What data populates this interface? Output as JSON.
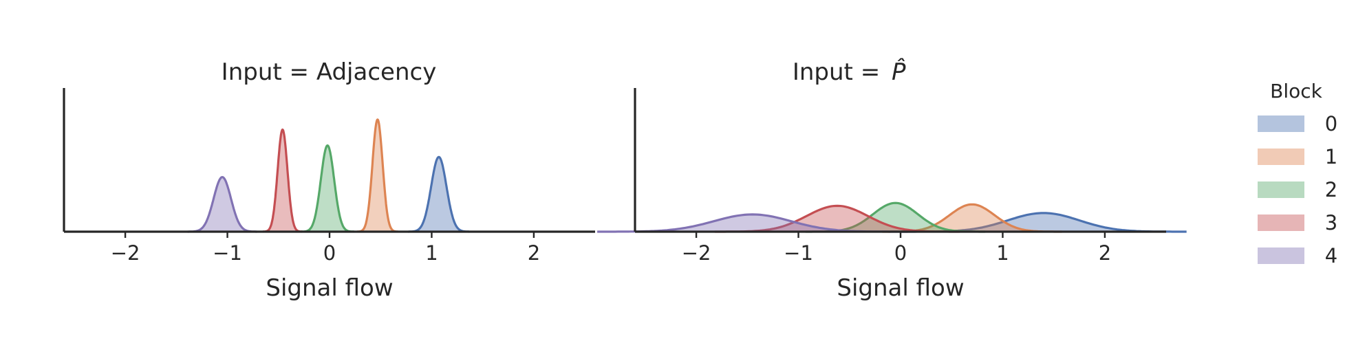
{
  "chart_data": [
    {
      "type": "area",
      "title": "Input = Adjacency",
      "xlabel": "Signal flow",
      "ylabel": "",
      "xlim": [
        -2.6,
        2.6
      ],
      "xticks": [
        -2,
        -1,
        0,
        1,
        2
      ],
      "tick_labels": [
        "−2",
        "−1",
        "0",
        "1",
        "2"
      ],
      "yaxis_ticks": "none",
      "series": [
        {
          "name": "0",
          "mean": 1.07,
          "sd": 0.075,
          "peak": 0.52
        },
        {
          "name": "1",
          "mean": 0.47,
          "sd": 0.05,
          "peak": 0.78
        },
        {
          "name": "2",
          "mean": -0.02,
          "sd": 0.065,
          "peak": 0.6
        },
        {
          "name": "3",
          "mean": -0.46,
          "sd": 0.048,
          "peak": 0.71
        },
        {
          "name": "4",
          "mean": -1.05,
          "sd": 0.085,
          "peak": 0.38
        }
      ]
    },
    {
      "type": "area",
      "title": "Input = ",
      "title_math": "P̂",
      "xlabel": "Signal flow",
      "ylabel": "",
      "xlim": [
        -2.6,
        2.6
      ],
      "xticks": [
        -2,
        -1,
        0,
        1,
        2
      ],
      "tick_labels": [
        "−2",
        "−1",
        "0",
        "1",
        "2"
      ],
      "yaxis_ticks": "none",
      "series": [
        {
          "name": "0",
          "mean": 1.4,
          "sd": 0.35,
          "peak": 0.13
        },
        {
          "name": "1",
          "mean": 0.7,
          "sd": 0.22,
          "peak": 0.19
        },
        {
          "name": "2",
          "mean": -0.05,
          "sd": 0.22,
          "peak": 0.2
        },
        {
          "name": "3",
          "mean": -0.62,
          "sd": 0.3,
          "peak": 0.18
        },
        {
          "name": "4",
          "mean": -1.45,
          "sd": 0.38,
          "peak": 0.12
        }
      ]
    }
  ],
  "legend": {
    "title": "Block",
    "placement": "right",
    "items": [
      {
        "label": "0",
        "color": "#4c72b0"
      },
      {
        "label": "1",
        "color": "#dd8452"
      },
      {
        "label": "2",
        "color": "#55a868"
      },
      {
        "label": "3",
        "color": "#c44e52"
      },
      {
        "label": "4",
        "color": "#8172b3"
      }
    ]
  }
}
